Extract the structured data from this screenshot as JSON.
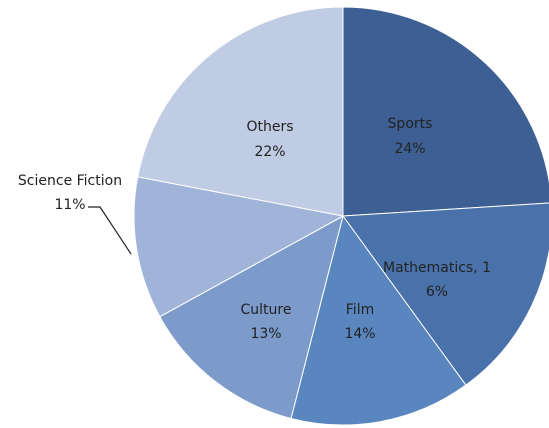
{
  "chart_data": {
    "type": "pie",
    "labels": [
      [
        "Sports",
        "24%"
      ],
      [
        "Mathematics, 1",
        "6%"
      ],
      [
        "Film",
        "14%"
      ],
      [
        "Culture",
        "13%"
      ],
      [
        "Science Fiction",
        "11%"
      ],
      [
        "Others",
        "22%"
      ]
    ],
    "values": [
      24,
      16,
      14,
      13,
      11,
      22
    ],
    "colors": [
      "#3d5f93",
      "#4a72aa",
      "#5a86c0",
      "#7c9bcb",
      "#9fb4d8",
      "#c0cce3"
    ]
  }
}
